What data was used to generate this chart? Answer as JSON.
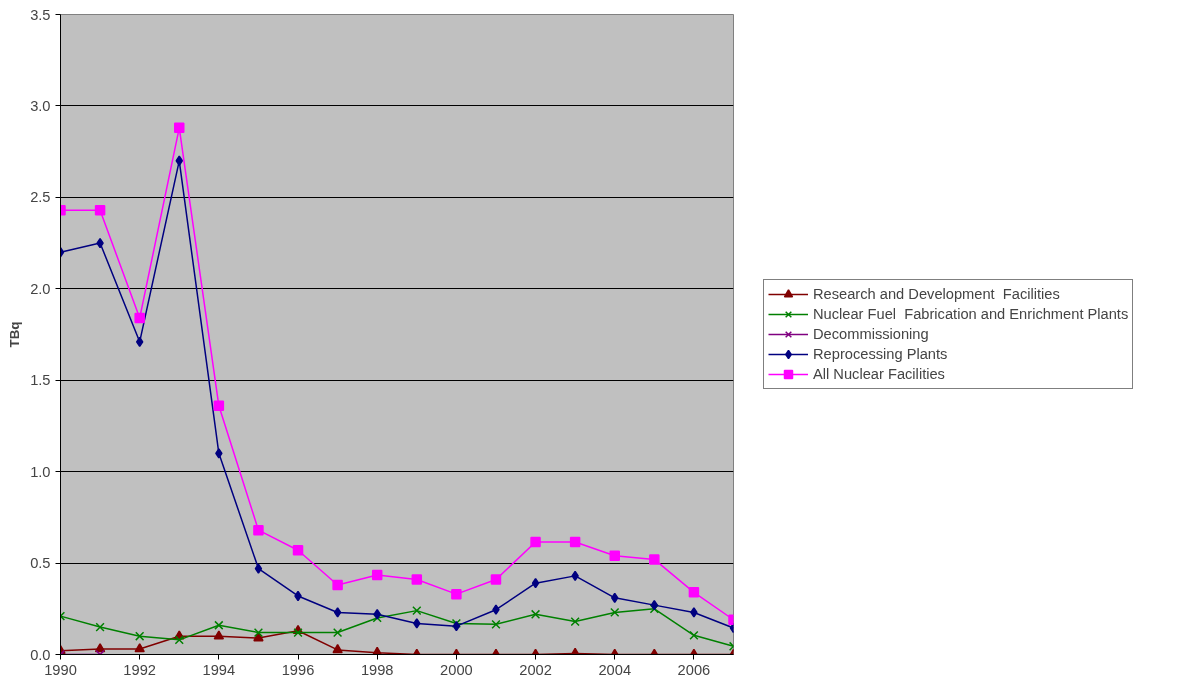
{
  "chart_data": {
    "type": "line",
    "ylabel": "TBq",
    "x": [
      1990,
      1991,
      1992,
      1993,
      1994,
      1995,
      1996,
      1997,
      1998,
      1999,
      2000,
      2001,
      2002,
      2003,
      2004,
      2005,
      2006,
      2007
    ],
    "xlim": [
      1990,
      2007
    ],
    "xticks": [
      1990,
      1992,
      1994,
      1996,
      1998,
      2000,
      2002,
      2004,
      2006
    ],
    "ylim": [
      0,
      3.5
    ],
    "yticks": [
      {
        "value": 0,
        "label": "0.0"
      },
      {
        "value": 0.5,
        "label": "0.5"
      },
      {
        "value": 1,
        "label": "1.0"
      },
      {
        "value": 1.5,
        "label": "1.5"
      },
      {
        "value": 2,
        "label": "2.0"
      },
      {
        "value": 2.5,
        "label": "2.5"
      },
      {
        "value": 3,
        "label": "3.0"
      },
      {
        "value": 3.5,
        "label": "3.5"
      }
    ],
    "grid": "y",
    "legend": "right",
    "line_style": "solid",
    "series": [
      {
        "name": "Research and Development  Facilities",
        "color": "#800000",
        "marker": "triangle",
        "values": [
          0.02,
          0.03,
          0.03,
          0.1,
          0.1,
          0.09,
          0.13,
          0.025,
          0.01,
          0,
          0,
          0,
          0,
          0.005,
          0,
          0,
          0,
          0
        ]
      },
      {
        "name": "Nuclear Fuel  Fabrication and Enrichment Plants",
        "color": "#008000",
        "marker": "cross",
        "values": [
          0.21,
          0.15,
          0.1,
          0.08,
          0.16,
          0.12,
          0.12,
          0.12,
          0.2,
          0.24,
          0.17,
          0.165,
          0.22,
          0.18,
          0.23,
          0.25,
          0.105,
          0.045
        ]
      },
      {
        "name": "Decommissioning",
        "color": "#800080",
        "marker": "cross",
        "values": [
          0,
          0,
          null,
          null,
          null,
          null,
          null,
          null,
          null,
          null,
          null,
          null,
          null,
          null,
          null,
          null,
          null,
          null
        ]
      },
      {
        "name": "Reprocessing Plants",
        "color": "#000080",
        "marker": "diamond",
        "values": [
          2.2,
          2.25,
          1.71,
          2.7,
          1.1,
          0.47,
          0.32,
          0.23,
          0.22,
          0.17,
          0.155,
          0.245,
          0.39,
          0.43,
          0.31,
          0.27,
          0.23,
          0.145
        ]
      },
      {
        "name": "All Nuclear Facilities",
        "color": "#ff00ff",
        "marker": "square",
        "values": [
          2.43,
          2.43,
          1.84,
          2.88,
          1.36,
          0.68,
          0.57,
          0.38,
          0.435,
          0.41,
          0.33,
          0.41,
          0.615,
          0.615,
          0.54,
          0.52,
          0.34,
          0.19
        ]
      }
    ]
  }
}
